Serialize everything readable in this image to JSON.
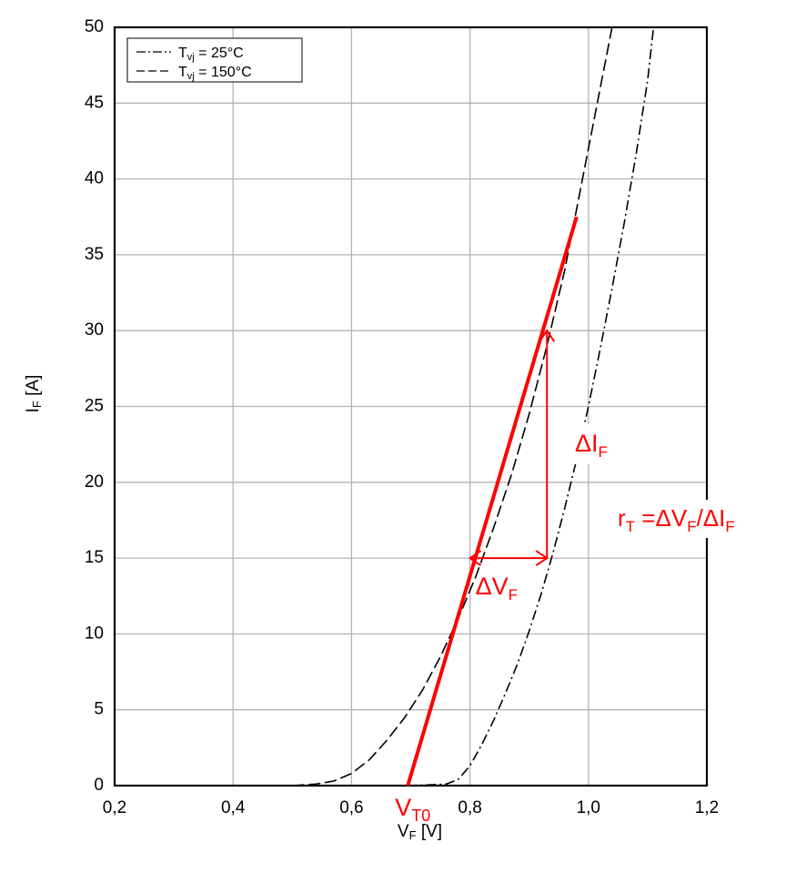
{
  "chart_data": {
    "type": "line",
    "xlabel": {
      "main": "V",
      "sub": "F",
      "rest": " [V]"
    },
    "ylabel": {
      "main": "I",
      "sub": "F",
      "rest": " [A]"
    },
    "xlim": [
      0.2,
      1.2
    ],
    "ylim": [
      0,
      50
    ],
    "x_ticks": [
      "0,2",
      "0,4",
      "0,6",
      "0,8",
      "1,0",
      "1,2"
    ],
    "y_ticks": [
      "0",
      "5",
      "10",
      "15",
      "20",
      "25",
      "30",
      "35",
      "40",
      "45",
      "50"
    ],
    "grid": true,
    "legend_position": "top-left",
    "series": [
      {
        "name": "Tvj = 25°C",
        "legend": {
          "main": "T",
          "sub": "vj",
          "rest": " = 25°C"
        },
        "style": "dash-dot",
        "color": "#000000",
        "x": [
          0.5,
          0.7,
          0.76,
          0.78,
          0.8,
          0.82,
          0.84,
          0.86,
          0.88,
          0.9,
          0.92,
          0.94,
          0.96,
          0.98,
          1.0,
          1.02,
          1.04,
          1.06,
          1.08,
          1.1,
          1.11
        ],
        "y": [
          0,
          0,
          0.1,
          0.4,
          1.3,
          2.7,
          4.3,
          6.1,
          8.0,
          10.2,
          12.6,
          15.3,
          18.3,
          21.5,
          25.0,
          28.8,
          32.8,
          37.0,
          41.5,
          46.5,
          50
        ]
      },
      {
        "name": "Tvj = 150°C",
        "legend": {
          "main": "T",
          "sub": "vj",
          "rest": " = 150°C"
        },
        "style": "dashed",
        "color": "#000000",
        "x": [
          0.5,
          0.54,
          0.57,
          0.6,
          0.63,
          0.66,
          0.69,
          0.72,
          0.75,
          0.78,
          0.81,
          0.84,
          0.87,
          0.9,
          0.93,
          0.96,
          0.99,
          1.02,
          1.04
        ],
        "y": [
          0,
          0.1,
          0.3,
          0.8,
          1.7,
          3.0,
          4.5,
          6.3,
          8.5,
          11.0,
          13.8,
          17.0,
          20.5,
          24.5,
          29.0,
          34.0,
          40.0,
          46.0,
          50
        ]
      }
    ],
    "annotations": {
      "color": "#ff0000",
      "tangent": {
        "x": [
          0.695,
          0.98
        ],
        "y": [
          0,
          37.5
        ]
      },
      "delta_v_arrow": {
        "x": [
          0.8,
          0.93
        ],
        "y": 15
      },
      "delta_i_arrow": {
        "x": 0.93,
        "y": [
          15,
          30
        ]
      },
      "vt0": {
        "main": "V",
        "sub": "T0",
        "x": 0.695
      },
      "delta_v": {
        "main": "ΔV",
        "sub": "F"
      },
      "delta_i": {
        "main": "ΔI",
        "sub": "F"
      },
      "rt": {
        "main": "r",
        "sub1": "T",
        "mid": " =ΔV",
        "sub2": "F",
        "slash": "/ΔI",
        "sub3": "F"
      }
    }
  }
}
